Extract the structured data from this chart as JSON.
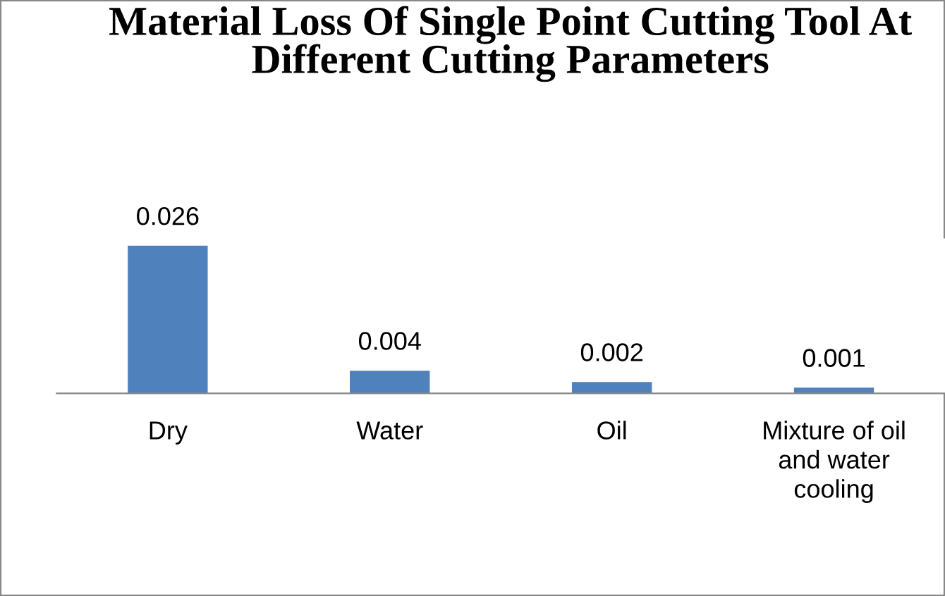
{
  "chart_data": {
    "type": "bar",
    "title": "Material Loss Of Single Point Cutting Tool At Different Cutting Parameters",
    "categories": [
      "Dry",
      "Water",
      "Oil",
      "Mixture of oil and water cooling"
    ],
    "values": [
      0.026,
      0.004,
      0.002,
      0.001
    ],
    "color": "#4f81bd",
    "data_labels": true,
    "grid": false,
    "legend": false
  }
}
